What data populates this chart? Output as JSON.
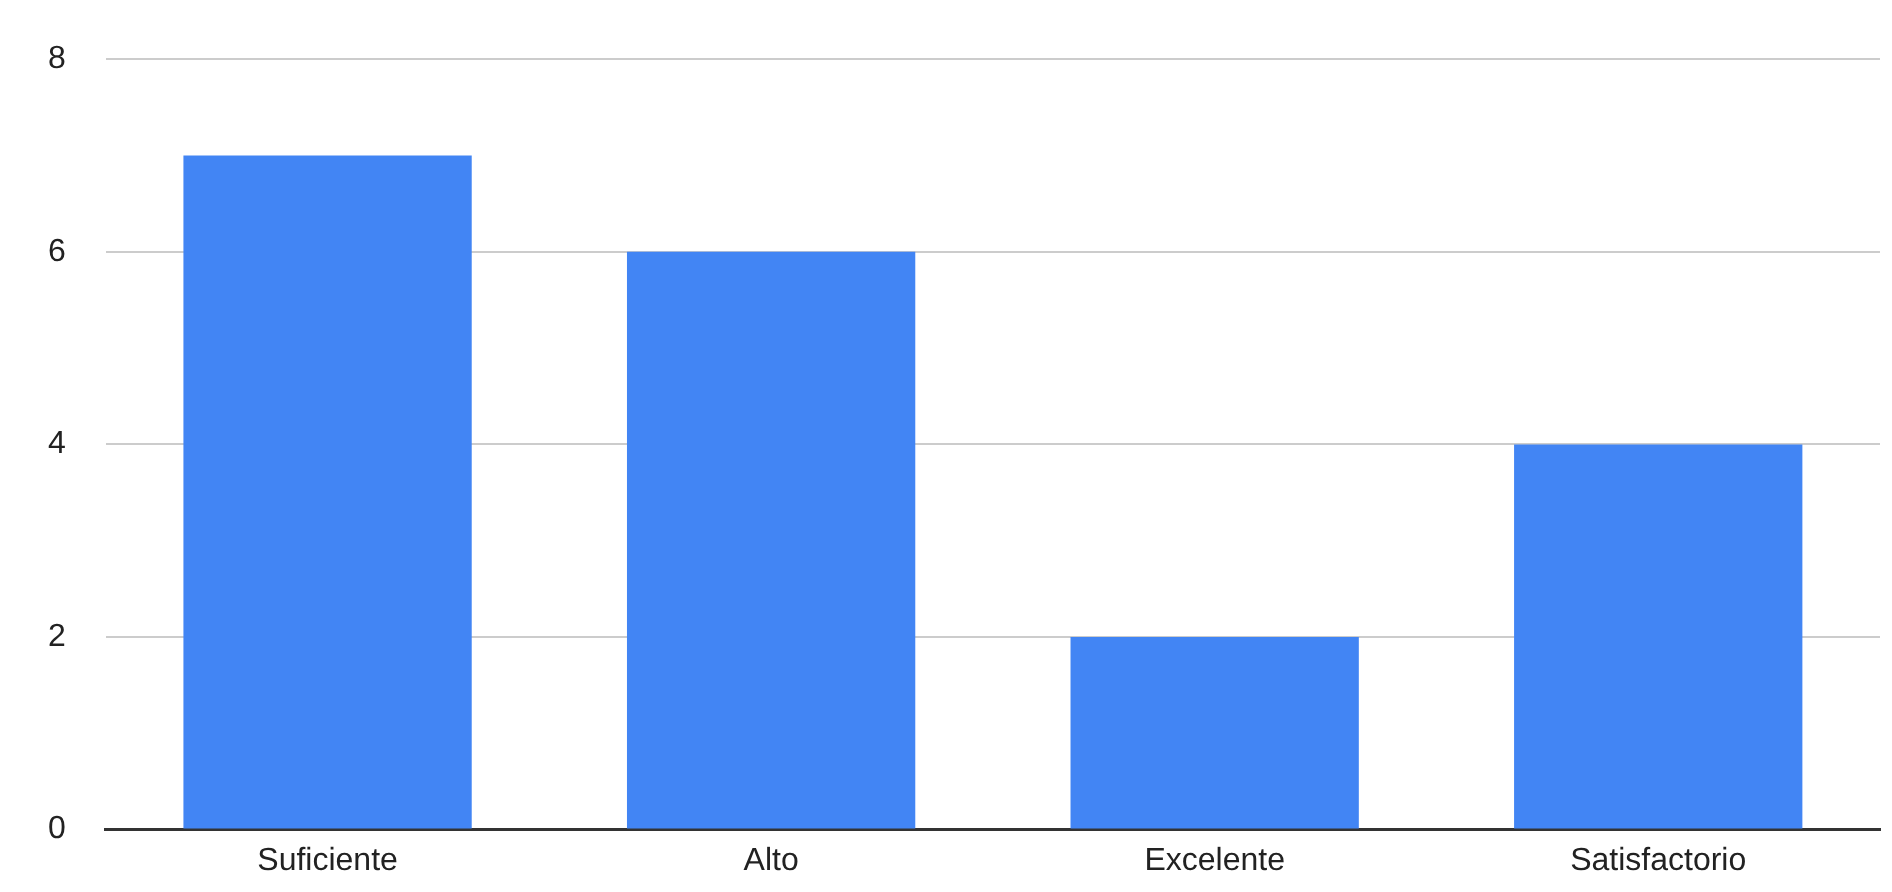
{
  "chart_data": {
    "type": "bar",
    "categories": [
      "Suficiente",
      "Alto",
      "Excelente",
      "Satisfactorio"
    ],
    "values": [
      7,
      6,
      2,
      4
    ],
    "color": "#4285f4",
    "ylim": [
      0,
      8
    ],
    "yticks": [
      0,
      2,
      4,
      6,
      8
    ],
    "grid": "y"
  }
}
